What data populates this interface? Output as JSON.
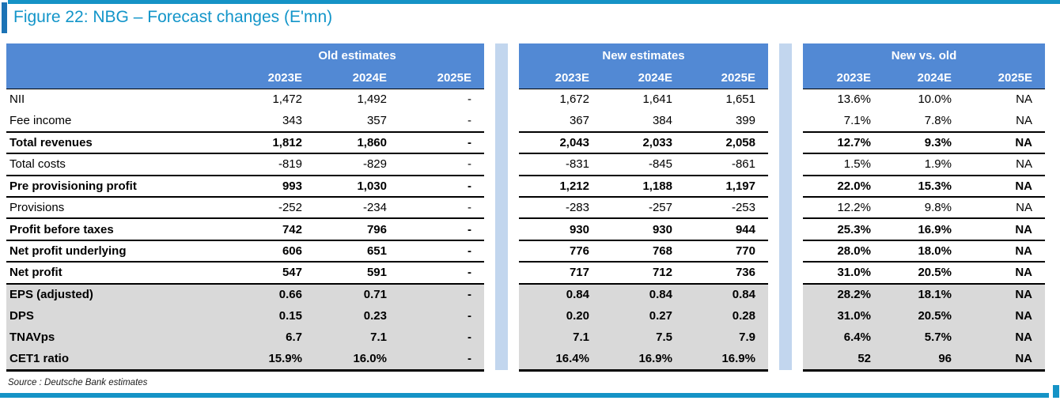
{
  "figure": {
    "title": "Figure 22: NBG – Forecast changes (E'mn)",
    "source": "Source : Deutsche Bank estimates"
  },
  "colors": {
    "accent_cyan": "#1593C6",
    "title_bar_blue": "#1C73B5",
    "header_blue": "#5289D4",
    "separator_blue": "#C2D6EE",
    "shaded_gray": "#D9D9D9",
    "title_text": "#1295C9"
  },
  "table": {
    "groups": [
      {
        "label": "Old estimates",
        "years": [
          "2023E",
          "2024E",
          "2025E"
        ]
      },
      {
        "label": "New estimates",
        "years": [
          "2023E",
          "2024E",
          "2025E"
        ]
      },
      {
        "label": "New vs. old",
        "years": [
          "2023E",
          "2024E",
          "2025E"
        ]
      }
    ],
    "rows": [
      {
        "label": "NII",
        "bold": false,
        "shaded": false,
        "border_bottom": false,
        "old": [
          "1,472",
          "1,492",
          "-"
        ],
        "new": [
          "1,672",
          "1,641",
          "1,651"
        ],
        "vs": [
          "13.6%",
          "10.0%",
          "NA"
        ]
      },
      {
        "label": "Fee income",
        "bold": false,
        "shaded": false,
        "border_bottom": true,
        "old": [
          "343",
          "357",
          "-"
        ],
        "new": [
          "367",
          "384",
          "399"
        ],
        "vs": [
          "7.1%",
          "7.8%",
          "NA"
        ]
      },
      {
        "label": "Total revenues",
        "bold": true,
        "shaded": false,
        "border_bottom": true,
        "old": [
          "1,812",
          "1,860",
          "-"
        ],
        "new": [
          "2,043",
          "2,033",
          "2,058"
        ],
        "vs": [
          "12.7%",
          "9.3%",
          "NA"
        ]
      },
      {
        "label": "Total costs",
        "bold": false,
        "shaded": false,
        "border_bottom": true,
        "old": [
          "-819",
          "-829",
          "-"
        ],
        "new": [
          "-831",
          "-845",
          "-861"
        ],
        "vs": [
          "1.5%",
          "1.9%",
          "NA"
        ]
      },
      {
        "label": "Pre provisioning profit",
        "bold": true,
        "shaded": false,
        "border_bottom": true,
        "old": [
          "993",
          "1,030",
          "-"
        ],
        "new": [
          "1,212",
          "1,188",
          "1,197"
        ],
        "vs": [
          "22.0%",
          "15.3%",
          "NA"
        ]
      },
      {
        "label": "Provisions",
        "bold": false,
        "shaded": false,
        "border_bottom": true,
        "old": [
          "-252",
          "-234",
          "-"
        ],
        "new": [
          "-283",
          "-257",
          "-253"
        ],
        "vs": [
          "12.2%",
          "9.8%",
          "NA"
        ]
      },
      {
        "label": "Profit before taxes",
        "bold": true,
        "shaded": false,
        "border_bottom": true,
        "old": [
          "742",
          "796",
          "-"
        ],
        "new": [
          "930",
          "930",
          "944"
        ],
        "vs": [
          "25.3%",
          "16.9%",
          "NA"
        ]
      },
      {
        "label": "Net profit underlying",
        "bold": true,
        "shaded": false,
        "border_bottom": true,
        "old": [
          "606",
          "651",
          "-"
        ],
        "new": [
          "776",
          "768",
          "770"
        ],
        "vs": [
          "28.0%",
          "18.0%",
          "NA"
        ]
      },
      {
        "label": "Net profit",
        "bold": true,
        "shaded": false,
        "border_bottom": true,
        "old": [
          "547",
          "591",
          "-"
        ],
        "new": [
          "717",
          "712",
          "736"
        ],
        "vs": [
          "31.0%",
          "20.5%",
          "NA"
        ]
      },
      {
        "label": "EPS (adjusted)",
        "bold": true,
        "shaded": true,
        "border_bottom": false,
        "old": [
          "0.66",
          "0.71",
          "-"
        ],
        "new": [
          "0.84",
          "0.84",
          "0.84"
        ],
        "vs": [
          "28.2%",
          "18.1%",
          "NA"
        ]
      },
      {
        "label": "DPS",
        "bold": true,
        "shaded": true,
        "border_bottom": false,
        "old": [
          "0.15",
          "0.23",
          "-"
        ],
        "new": [
          "0.20",
          "0.27",
          "0.28"
        ],
        "vs": [
          "31.0%",
          "20.5%",
          "NA"
        ]
      },
      {
        "label": "TNAVps",
        "bold": true,
        "shaded": true,
        "border_bottom": false,
        "old": [
          "6.7",
          "7.1",
          "-"
        ],
        "new": [
          "7.1",
          "7.5",
          "7.9"
        ],
        "vs": [
          "6.4%",
          "5.7%",
          "NA"
        ]
      },
      {
        "label": "CET1 ratio",
        "bold": true,
        "shaded": true,
        "border_bottom": true,
        "old": [
          "15.9%",
          "16.0%",
          "-"
        ],
        "new": [
          "16.4%",
          "16.9%",
          "16.9%"
        ],
        "vs": [
          "52",
          "96",
          "NA"
        ]
      }
    ]
  }
}
